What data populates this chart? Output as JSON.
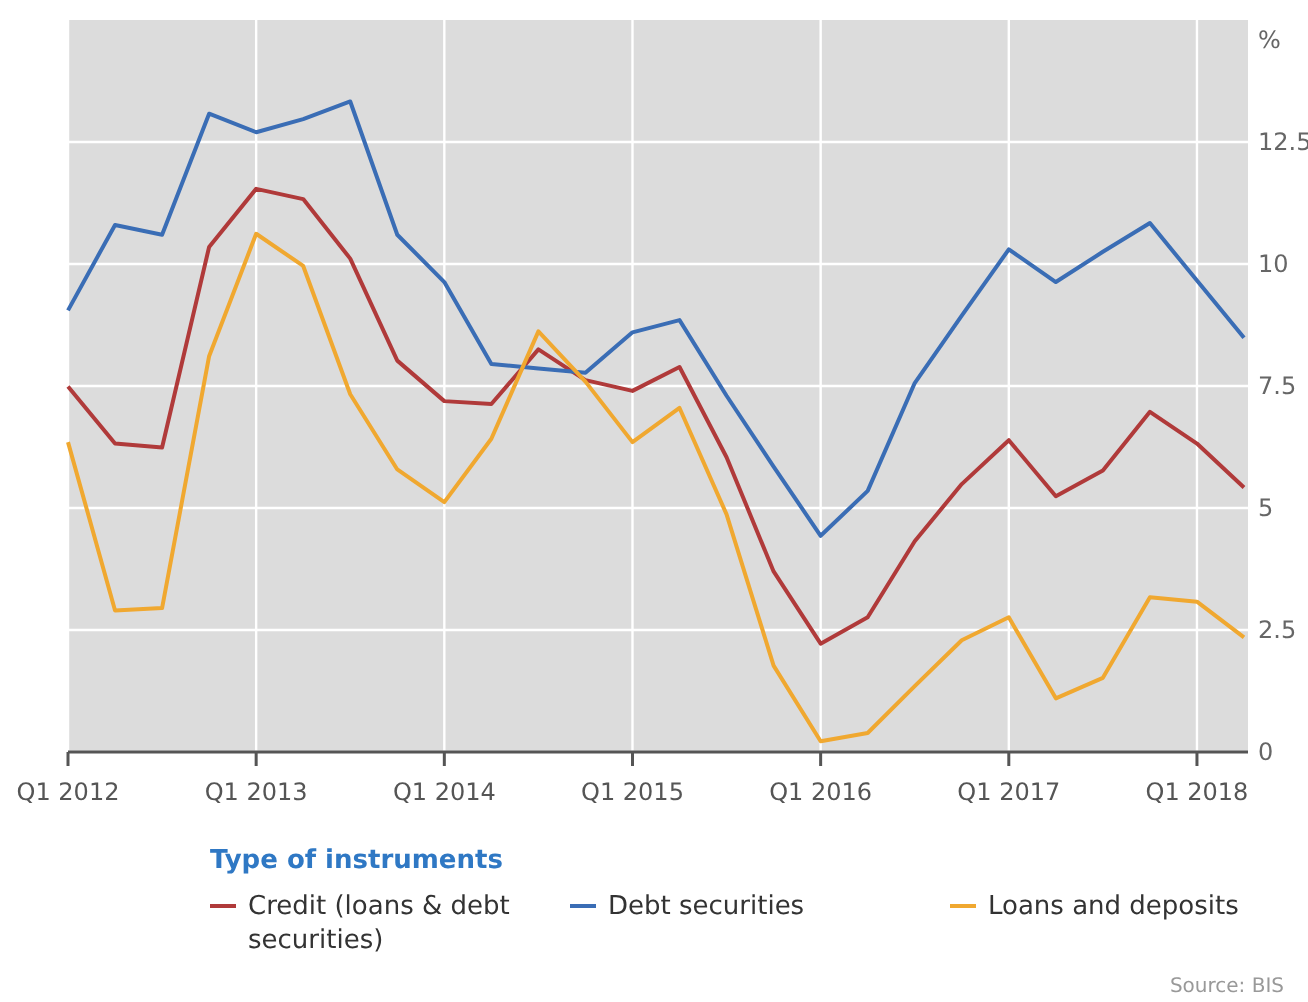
{
  "chart_data": {
    "type": "line",
    "ylabel": "%",
    "legend_title": "Type of instruments",
    "categories": [
      "Q1 2012",
      null,
      null,
      null,
      "Q1 2013",
      null,
      null,
      null,
      "Q1 2014",
      null,
      null,
      null,
      "Q1 2015",
      null,
      null,
      null,
      "Q1 2016",
      null,
      null,
      null,
      "Q1 2017",
      null,
      null,
      null,
      "Q1 2018",
      null
    ],
    "series": [
      {
        "name": "Credit (loans & debt securities)",
        "color": "#b03a3a",
        "values": [
          7.49,
          6.32,
          6.24,
          10.35,
          11.54,
          11.33,
          10.11,
          8.02,
          7.19,
          7.13,
          8.25,
          7.62,
          7.4,
          7.89,
          6.04,
          3.7,
          2.22,
          2.76,
          4.32,
          5.49,
          6.39,
          5.24,
          5.77,
          6.97,
          6.32,
          5.42
        ]
      },
      {
        "name": "Debt securities",
        "color": "#3a6db5",
        "values": [
          9.05,
          10.8,
          10.6,
          13.08,
          12.7,
          12.97,
          13.33,
          10.6,
          9.63,
          7.95,
          7.86,
          7.77,
          8.6,
          8.85,
          7.3,
          5.85,
          4.43,
          5.35,
          7.56,
          8.94,
          10.3,
          9.63,
          10.25,
          10.84,
          9.66,
          8.49
        ]
      },
      {
        "name": "Loans and deposits",
        "color": "#f0a830",
        "values": [
          6.35,
          2.9,
          2.95,
          8.11,
          10.62,
          9.96,
          7.33,
          5.79,
          5.12,
          6.42,
          8.62,
          7.59,
          6.35,
          7.05,
          4.87,
          1.77,
          0.22,
          0.39,
          1.35,
          2.29,
          2.76,
          1.1,
          1.52,
          3.17,
          3.08,
          2.35
        ]
      }
    ],
    "ylim": [
      0,
      15
    ],
    "yticks": [
      0,
      2.5,
      5,
      7.5,
      10,
      12.5
    ],
    "grid": true,
    "legend": "bottom",
    "annotations": [
      "Source: BIS"
    ]
  }
}
